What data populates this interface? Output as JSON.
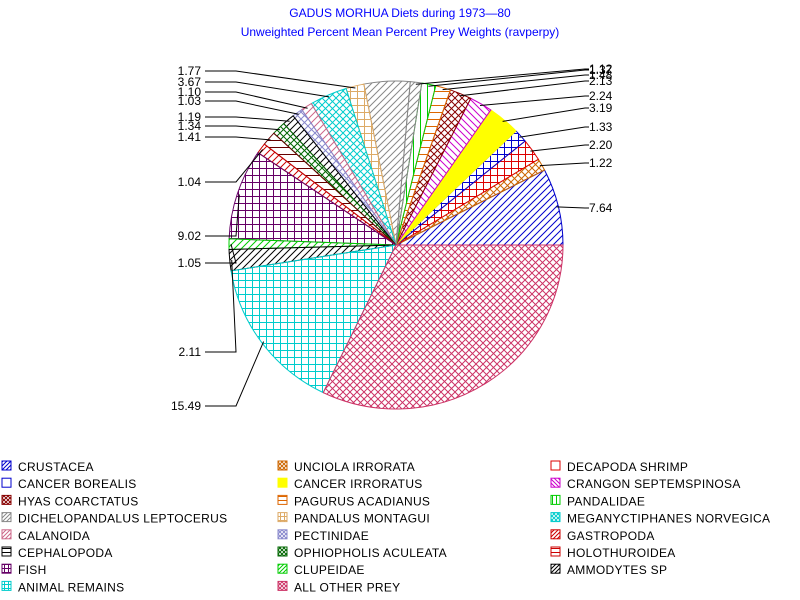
{
  "chart_data": {
    "type": "pie",
    "title": "GADUS MORHUA Diets during 1973—80",
    "subtitle": "Unweighted Percent Mean Percent Prey  Weights (ravperpy)",
    "slices": [
      {
        "name": "CRUSTACEA",
        "value": 7.64,
        "label": "7.64",
        "color": "#0000cc",
        "pattern": "diag-up"
      },
      {
        "name": "UNCIOLA IRRORATA",
        "value": 1.22,
        "label": "1.22",
        "color": "#cc6600",
        "pattern": "crosshatch-diag"
      },
      {
        "name": "DECAPODA SHRIMP",
        "value": 2.2,
        "label": "2.20",
        "color": "#dd0000",
        "pattern": "square-grid"
      },
      {
        "name": "CANCER BOREALIS",
        "value": 1.33,
        "label": "1.33",
        "color": "#0000cc",
        "pattern": "square-grid"
      },
      {
        "name": "CANCER IRRORATUS",
        "value": 3.19,
        "label": "3.19",
        "color": "#ffff00",
        "pattern": "solid"
      },
      {
        "name": "CRANGON SEPTEMSPINOSA",
        "value": 2.24,
        "label": "2.24",
        "color": "#cc00cc",
        "pattern": "diag-down"
      },
      {
        "name": "HYAS COARCTATUS",
        "value": 2.13,
        "label": "2.13",
        "color": "#880000",
        "pattern": "crosshatch-diag"
      },
      {
        "name": "PAGURUS ACADIANUS",
        "value": 1.48,
        "label": "1.48",
        "color": "#dd6600",
        "pattern": "horizontal"
      },
      {
        "name": "PANDALIDAE",
        "value": 1.37,
        "label": "1.37",
        "color": "#00cc00",
        "pattern": "vertical"
      },
      {
        "name": "DICHELOPANDALUS LEPTOCERUS",
        "value": 1.12,
        "label": "1.12",
        "color": "#888888",
        "pattern": "diag-up"
      },
      {
        "name": "ALL OTHER PREY",
        "value": 4.5,
        "label": "",
        "color": "#888888",
        "pattern": "diag-up"
      },
      {
        "name": "PANDALUS MONTAGUI",
        "value": 1.77,
        "label": "1.77",
        "color": "#ddaa66",
        "pattern": "square-grid"
      },
      {
        "name": "MEGANYCTIPHANES NORVEGICA",
        "value": 3.67,
        "label": "3.67",
        "color": "#00cccc",
        "pattern": "crosshatch-diag"
      },
      {
        "name": "CALANOIDA",
        "value": 1.1,
        "label": "1.10",
        "color": "#cc6688",
        "pattern": "diag-up"
      },
      {
        "name": "PECTINIDAE",
        "value": 1.03,
        "label": "1.03",
        "color": "#8888cc",
        "pattern": "crosshatch-diag"
      },
      {
        "name": "GASTROPODA",
        "value": 1.19,
        "label": "1.19",
        "color": "#000000",
        "pattern": "diag-up"
      },
      {
        "name": "CEPHALOPODA",
        "value": 1.34,
        "label": "1.34",
        "color": "#006600",
        "pattern": "crosshatch-diag"
      },
      {
        "name": "OPHIOPHOLIS ACULEATA",
        "value": 1.41,
        "label": "1.41",
        "color": "#660000",
        "pattern": "horizontal"
      },
      {
        "name": "HOLOTHUROIDEA",
        "value": 1.04,
        "label": "1.04",
        "color": "#cc0000",
        "pattern": "diag-up"
      },
      {
        "name": "FISH",
        "value": 9.02,
        "label": "9.02",
        "color": "#660066",
        "pattern": "square-grid"
      },
      {
        "name": "CLUPEIDAE",
        "value": 1.05,
        "label": "1.05",
        "color": "#00cc00",
        "pattern": "diag-up"
      },
      {
        "name": "AMMODYTES SP",
        "value": 2.11,
        "label": "2.11",
        "color": "#000000",
        "pattern": "diag-up"
      },
      {
        "name": "ANIMAL REMAINS",
        "value": 15.49,
        "label": "15.49",
        "color": "#00cccc",
        "pattern": "square-grid"
      },
      {
        "name": "ALL OTHER PREY",
        "value": 32.56,
        "label": "32.56",
        "color": "#cc3366",
        "pattern": "crosshatch-diag"
      }
    ],
    "legend_placement": "bottom",
    "legend": [
      {
        "label": "CRUSTACEA",
        "color": "#0000cc",
        "pattern": "diag-up"
      },
      {
        "label": "UNCIOLA IRRORATA",
        "color": "#cc6600",
        "pattern": "crosshatch-diag"
      },
      {
        "label": "DECAPODA SHRIMP",
        "color": "#dd0000",
        "pattern": "outline"
      },
      {
        "label": "CANCER BOREALIS",
        "color": "#0000cc",
        "pattern": "outline"
      },
      {
        "label": "CANCER IRRORATUS",
        "color": "#ffff00",
        "pattern": "solid"
      },
      {
        "label": "CRANGON SEPTEMSPINOSA",
        "color": "#cc00cc",
        "pattern": "diag-down"
      },
      {
        "label": "HYAS COARCTATUS",
        "color": "#880000",
        "pattern": "crosshatch-diag"
      },
      {
        "label": "PAGURUS ACADIANUS",
        "color": "#dd6600",
        "pattern": "horizontal"
      },
      {
        "label": "PANDALIDAE",
        "color": "#00cc00",
        "pattern": "vertical"
      },
      {
        "label": "DICHELOPANDALUS LEPTOCERUS",
        "color": "#888888",
        "pattern": "diag-up"
      },
      {
        "label": "PANDALUS MONTAGUI",
        "color": "#ddaa66",
        "pattern": "square-grid"
      },
      {
        "label": "MEGANYCTIPHANES NORVEGICA",
        "color": "#00cccc",
        "pattern": "crosshatch-diag"
      },
      {
        "label": "CALANOIDA",
        "color": "#cc6688",
        "pattern": "diag-up"
      },
      {
        "label": "PECTINIDAE",
        "color": "#8888cc",
        "pattern": "crosshatch-diag"
      },
      {
        "label": "GASTROPODA",
        "color": "#cc0000",
        "pattern": "diag-up"
      },
      {
        "label": "CEPHALOPODA",
        "color": "#000000",
        "pattern": "horizontal"
      },
      {
        "label": "OPHIOPHOLIS ACULEATA",
        "color": "#006600",
        "pattern": "crosshatch-diag"
      },
      {
        "label": "HOLOTHUROIDEA",
        "color": "#cc0000",
        "pattern": "horizontal"
      },
      {
        "label": "FISH",
        "color": "#660066",
        "pattern": "square-grid"
      },
      {
        "label": "CLUPEIDAE",
        "color": "#00cc00",
        "pattern": "diag-up"
      },
      {
        "label": "AMMODYTES SP",
        "color": "#000000",
        "pattern": "diag-up"
      },
      {
        "label": "ANIMAL REMAINS",
        "color": "#00cccc",
        "pattern": "square-grid"
      },
      {
        "label": "ALL OTHER PREY",
        "color": "#cc3366",
        "pattern": "crosshatch-diag"
      }
    ]
  }
}
